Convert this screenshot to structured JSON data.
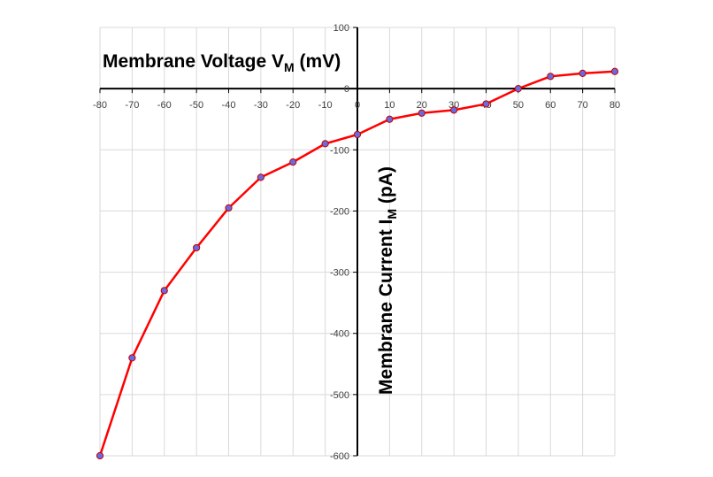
{
  "chart_data": {
    "type": "line",
    "xlabel": "Membrane Voltage",
    "xlabel_symbol": "V",
    "xlabel_sub": "M",
    "xlabel_unit": "(mV)",
    "ylabel": "Membrane Current",
    "ylabel_symbol": "I",
    "ylabel_sub": "M",
    "ylabel_unit": "(pA)",
    "xlim": [
      -80,
      80
    ],
    "ylim": [
      -600,
      100
    ],
    "x_ticks": [
      -80,
      -70,
      -60,
      -50,
      -40,
      -30,
      -20,
      -10,
      0,
      10,
      20,
      30,
      40,
      50,
      60,
      70,
      80
    ],
    "y_ticks": [
      100,
      0,
      -100,
      -200,
      -300,
      -400,
      -500,
      -600
    ],
    "grid": true,
    "legend": "none",
    "series": [
      {
        "x": [
          -80,
          -70,
          -60,
          -50,
          -40,
          -30,
          -20,
          -10,
          0,
          10,
          20,
          30,
          40,
          50,
          60,
          70,
          80
        ],
        "y": [
          -600,
          -440,
          -330,
          -260,
          -195,
          -145,
          -120,
          -90,
          -75,
          -50,
          -40,
          -35,
          -25,
          0,
          20,
          25,
          28
        ],
        "line_color": "#ff0000",
        "marker_color": "#6a6adf",
        "marker_edge": "#c00000"
      }
    ],
    "colors": {
      "grid": "#d9d9d9",
      "axis": "#000000"
    }
  }
}
